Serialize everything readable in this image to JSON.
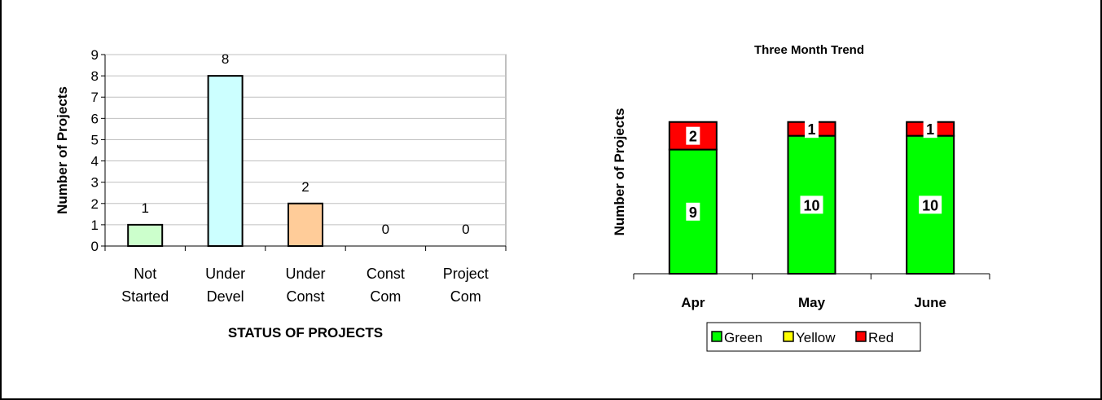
{
  "chart_data": [
    {
      "type": "bar",
      "title": "",
      "xlabel": "STATUS OF PROJECTS",
      "ylabel": "Number of Projects",
      "ylim": [
        0,
        9
      ],
      "yticks": [
        0,
        1,
        2,
        3,
        4,
        5,
        6,
        7,
        8,
        9
      ],
      "grid": true,
      "categories": [
        [
          "Not",
          "Started"
        ],
        [
          "Under",
          "Devel"
        ],
        [
          "Under",
          "Const"
        ],
        [
          "Const",
          "Com"
        ],
        [
          "Project",
          "Com"
        ]
      ],
      "values": [
        1,
        8,
        2,
        0,
        0
      ],
      "bar_colors": [
        "#ccffcc",
        "#ccffff",
        "#ffcc99",
        "#ffffff",
        "#ffffff"
      ],
      "plot_bg": "#ffffff",
      "grid_color": "#c0c0c0"
    },
    {
      "type": "bar",
      "stacked": true,
      "title": "Three Month Trend",
      "xlabel": "",
      "ylabel": "Number of Projects",
      "ylim": [
        0,
        15
      ],
      "categories": [
        "Apr",
        "May",
        "June"
      ],
      "series": [
        {
          "name": "Green",
          "values": [
            9,
            10,
            10
          ],
          "color": "#00ff00"
        },
        {
          "name": "Yellow",
          "values": [
            0,
            0,
            0
          ],
          "color": "#ffff00"
        },
        {
          "name": "Red",
          "values": [
            2,
            1,
            1
          ],
          "color": "#ff0000"
        }
      ],
      "legend_position": "bottom",
      "grid": false
    }
  ]
}
